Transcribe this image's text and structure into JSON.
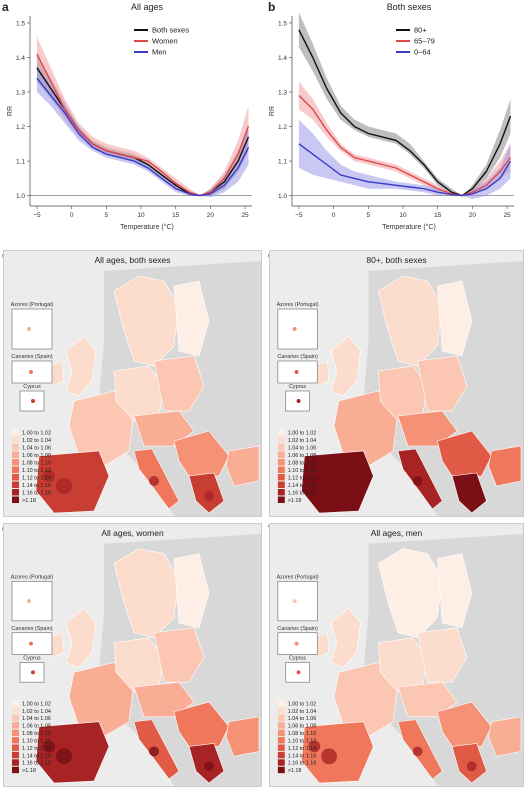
{
  "chart_data": [
    {
      "panel": "a",
      "type": "line",
      "title": "All ages",
      "xlabel": "Temperature (°C)",
      "ylabel": "RR",
      "xlim": [
        -6,
        26
      ],
      "ylim": [
        0.97,
        1.52
      ],
      "xticks": [
        -5,
        0,
        5,
        10,
        15,
        20,
        25
      ],
      "yticks": [
        1.0,
        1.1,
        1.2,
        1.3,
        1.4,
        1.5
      ],
      "legend_position": "top-right",
      "x": [
        -5,
        -3,
        -1,
        1,
        3,
        5,
        7,
        9,
        11,
        13,
        15,
        17,
        18.5,
        20,
        22,
        24,
        25.5
      ],
      "series": [
        {
          "name": "Both sexes",
          "color": "#111111",
          "band": "#888888",
          "values": [
            1.37,
            1.31,
            1.25,
            1.19,
            1.15,
            1.13,
            1.12,
            1.11,
            1.09,
            1.06,
            1.03,
            1.005,
            1.0,
            1.01,
            1.04,
            1.1,
            1.17
          ],
          "lower": [
            1.33,
            1.28,
            1.23,
            1.18,
            1.14,
            1.12,
            1.11,
            1.1,
            1.08,
            1.05,
            1.02,
            1.0,
            1.0,
            1.0,
            1.02,
            1.07,
            1.13
          ],
          "upper": [
            1.41,
            1.34,
            1.27,
            1.2,
            1.16,
            1.14,
            1.13,
            1.12,
            1.1,
            1.07,
            1.04,
            1.01,
            1.0,
            1.02,
            1.06,
            1.13,
            1.21
          ]
        },
        {
          "name": "Women",
          "color": "#e0484d",
          "band": "#f0a0a0",
          "values": [
            1.41,
            1.33,
            1.25,
            1.19,
            1.15,
            1.13,
            1.12,
            1.11,
            1.1,
            1.07,
            1.035,
            1.01,
            1.0,
            1.01,
            1.05,
            1.12,
            1.2
          ],
          "lower": [
            1.36,
            1.29,
            1.22,
            1.17,
            1.14,
            1.12,
            1.11,
            1.1,
            1.09,
            1.06,
            1.02,
            1.0,
            1.0,
            1.0,
            1.03,
            1.08,
            1.14
          ],
          "upper": [
            1.46,
            1.37,
            1.28,
            1.21,
            1.17,
            1.15,
            1.14,
            1.13,
            1.11,
            1.08,
            1.05,
            1.02,
            1.0,
            1.02,
            1.07,
            1.16,
            1.26
          ]
        },
        {
          "name": "Men",
          "color": "#3a3acc",
          "band": "#9a9ae8",
          "values": [
            1.34,
            1.29,
            1.24,
            1.18,
            1.14,
            1.12,
            1.11,
            1.1,
            1.08,
            1.05,
            1.02,
            1.005,
            1.0,
            1.005,
            1.03,
            1.08,
            1.14
          ],
          "lower": [
            1.3,
            1.26,
            1.21,
            1.16,
            1.13,
            1.11,
            1.1,
            1.09,
            1.07,
            1.04,
            1.01,
            1.0,
            1.0,
            0.995,
            1.01,
            1.04,
            1.09
          ],
          "upper": [
            1.38,
            1.32,
            1.26,
            1.2,
            1.15,
            1.13,
            1.12,
            1.11,
            1.09,
            1.06,
            1.03,
            1.01,
            1.0,
            1.015,
            1.05,
            1.11,
            1.19
          ]
        }
      ]
    },
    {
      "panel": "b",
      "type": "line",
      "title": "Both sexes",
      "xlabel": "Temperature (°C)",
      "ylabel": "RR",
      "xlim": [
        -6,
        26
      ],
      "ylim": [
        0.97,
        1.52
      ],
      "xticks": [
        -5,
        0,
        5,
        10,
        15,
        20,
        25
      ],
      "yticks": [
        1.0,
        1.1,
        1.2,
        1.3,
        1.4,
        1.5
      ],
      "legend_position": "top-right",
      "x": [
        -5,
        -3,
        -1,
        1,
        3,
        5,
        7,
        9,
        11,
        13,
        15,
        17,
        18.5,
        20,
        22,
        24,
        25.5
      ],
      "series": [
        {
          "name": "80+",
          "color": "#111111",
          "band": "#888888",
          "values": [
            1.48,
            1.4,
            1.31,
            1.24,
            1.2,
            1.18,
            1.17,
            1.16,
            1.13,
            1.09,
            1.04,
            1.01,
            1.0,
            1.02,
            1.07,
            1.15,
            1.23
          ],
          "lower": [
            1.43,
            1.36,
            1.28,
            1.22,
            1.19,
            1.17,
            1.16,
            1.15,
            1.12,
            1.08,
            1.03,
            1.0,
            1.0,
            1.01,
            1.05,
            1.11,
            1.18
          ],
          "upper": [
            1.53,
            1.44,
            1.34,
            1.26,
            1.22,
            1.2,
            1.19,
            1.18,
            1.15,
            1.1,
            1.05,
            1.02,
            1.0,
            1.03,
            1.09,
            1.19,
            1.28
          ]
        },
        {
          "name": "65–79",
          "color": "#e0484d",
          "band": "#f0a0a0",
          "values": [
            1.29,
            1.25,
            1.19,
            1.14,
            1.11,
            1.1,
            1.09,
            1.08,
            1.06,
            1.04,
            1.02,
            1.005,
            1.0,
            1.01,
            1.03,
            1.07,
            1.11
          ],
          "lower": [
            1.25,
            1.22,
            1.17,
            1.13,
            1.1,
            1.09,
            1.08,
            1.07,
            1.05,
            1.03,
            1.01,
            1.0,
            1.0,
            1.0,
            1.02,
            1.05,
            1.07
          ],
          "upper": [
            1.33,
            1.28,
            1.21,
            1.15,
            1.12,
            1.11,
            1.1,
            1.09,
            1.07,
            1.05,
            1.03,
            1.01,
            1.0,
            1.02,
            1.05,
            1.1,
            1.15
          ]
        },
        {
          "name": "0–64",
          "color": "#3a3acc",
          "band": "#9a9ae8",
          "values": [
            1.15,
            1.12,
            1.09,
            1.06,
            1.05,
            1.04,
            1.035,
            1.03,
            1.025,
            1.02,
            1.01,
            1.003,
            1.0,
            1.005,
            1.02,
            1.05,
            1.1
          ],
          "lower": [
            1.08,
            1.06,
            1.05,
            1.04,
            1.03,
            1.02,
            1.02,
            1.02,
            1.015,
            1.01,
            1.0,
            1.0,
            1.0,
            0.99,
            1.0,
            1.02,
            1.05
          ],
          "upper": [
            1.22,
            1.18,
            1.13,
            1.09,
            1.07,
            1.06,
            1.05,
            1.04,
            1.035,
            1.03,
            1.02,
            1.006,
            1.0,
            1.02,
            1.04,
            1.08,
            1.15
          ]
        }
      ]
    }
  ],
  "panels": {
    "a": "a",
    "b": "b",
    "c": "c",
    "d": "d",
    "e": "e",
    "f": "f"
  },
  "maps": [
    {
      "id": "c",
      "title": "All ages, both sexes",
      "intensity": 0.55
    },
    {
      "id": "d",
      "title": "80+, both sexes",
      "intensity": 0.8
    },
    {
      "id": "e",
      "title": "All ages, women",
      "intensity": 0.65
    },
    {
      "id": "f",
      "title": "All ages, men",
      "intensity": 0.45
    }
  ],
  "insets": {
    "azores": "Azores (Portugal)",
    "canaries": "Canaries (Spain)",
    "cyprus": "Cyprus"
  },
  "map_legend": {
    "classes": [
      "1.00 to 1.02",
      "1.02 to 1.04",
      "1.04 to 1.06",
      "1.06 to 1.08",
      "1.08 to 1.10",
      "1.10 to 1.12",
      "1.12 to 1.14",
      "1.14 to 1.16",
      "1.16 to 1.18",
      ">1.18"
    ],
    "colors": [
      "#fdeee6",
      "#fcdccd",
      "#fbc7b2",
      "#f9ad94",
      "#f59276",
      "#ee775c",
      "#e05a46",
      "#c93e33",
      "#a82424",
      "#7a0f16"
    ]
  }
}
